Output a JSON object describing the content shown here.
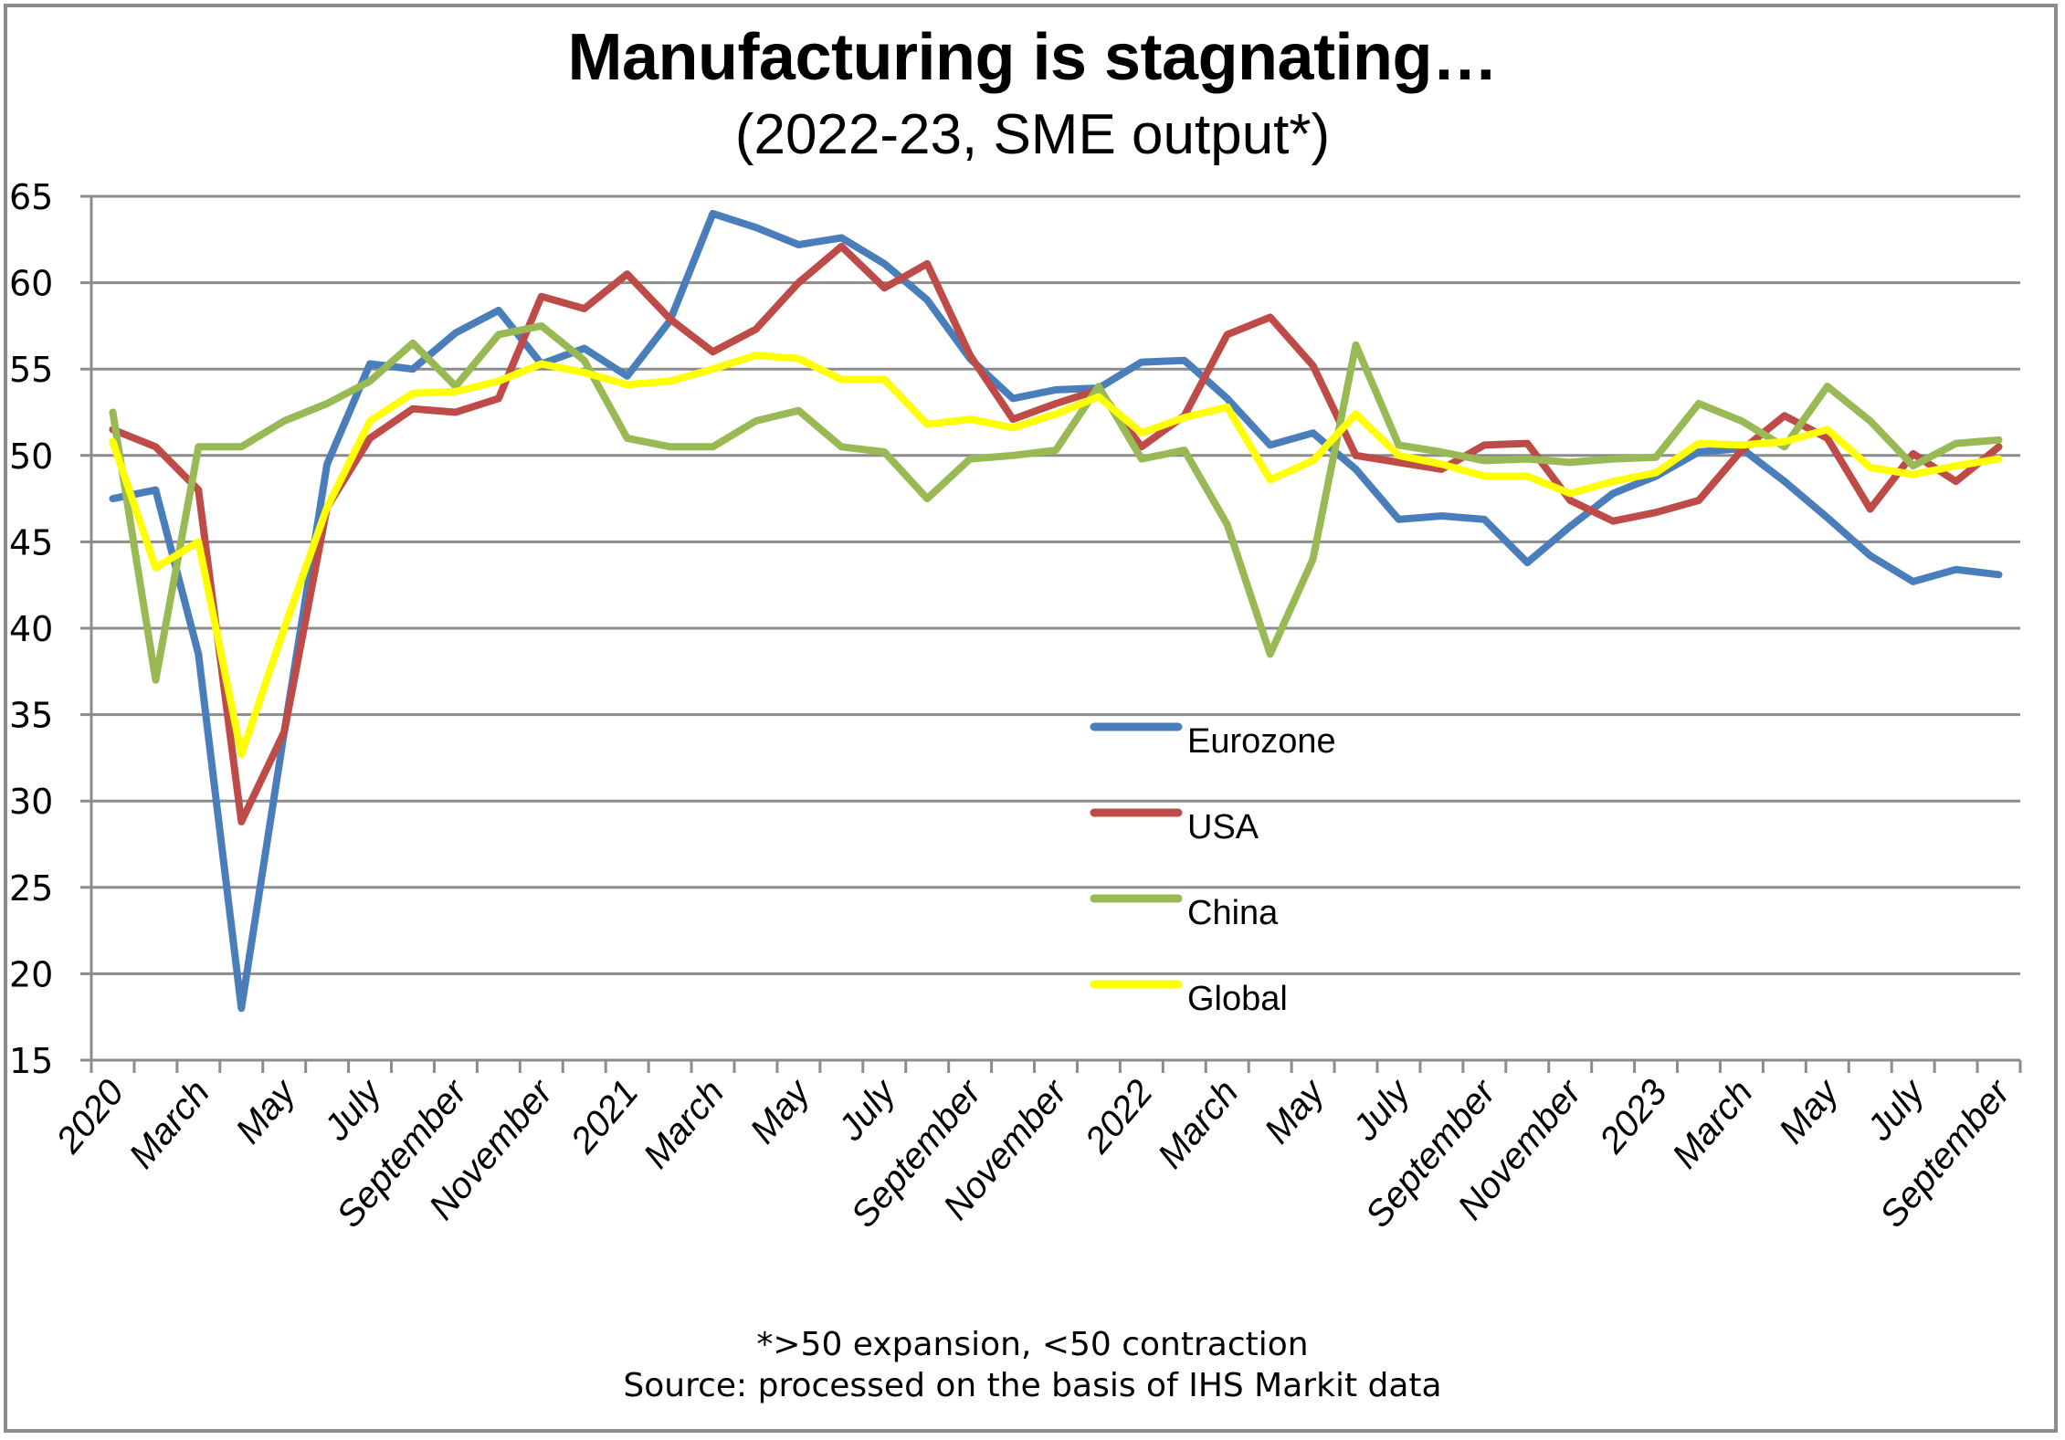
{
  "chart_data": {
    "type": "line",
    "title": "Manufacturing is stagnating…",
    "subtitle": "(2022-23, SME output*)",
    "xlabel": "",
    "ylabel": "",
    "ylim": [
      15,
      65
    ],
    "yticks": [
      15,
      20,
      25,
      30,
      35,
      40,
      45,
      50,
      55,
      60,
      65
    ],
    "grid": true,
    "legend_position": "center-right",
    "x": [
      "Jan 2020",
      "Feb 2020",
      "Mar 2020",
      "Apr 2020",
      "May 2020",
      "Jun 2020",
      "Jul 2020",
      "Aug 2020",
      "Sep 2020",
      "Oct 2020",
      "Nov 2020",
      "Dec 2020",
      "Jan 2021",
      "Feb 2021",
      "Mar 2021",
      "Apr 2021",
      "May 2021",
      "Jun 2021",
      "Jul 2021",
      "Aug 2021",
      "Sep 2021",
      "Oct 2021",
      "Nov 2021",
      "Dec 2021",
      "Jan 2022",
      "Feb 2022",
      "Mar 2022",
      "Apr 2022",
      "May 2022",
      "Jun 2022",
      "Jul 2022",
      "Aug 2022",
      "Sep 2022",
      "Oct 2022",
      "Nov 2022",
      "Dec 2022",
      "Jan 2023",
      "Feb 2023",
      "Mar 2023",
      "Apr 2023",
      "May 2023",
      "Jun 2023",
      "Jul 2023",
      "Aug 2023",
      "Sep 2023"
    ],
    "xtick_labels": [
      "2020",
      "March",
      "May",
      "July",
      "September",
      "November",
      "2021",
      "March",
      "May",
      "July",
      "September",
      "November",
      "2022",
      "March",
      "May",
      "July",
      "September",
      "November",
      "2023",
      "March",
      "May",
      "July",
      "September"
    ],
    "xtick_label_every": 2,
    "series": [
      {
        "name": "Eurozone",
        "color": "#4a7ebb",
        "values": [
          47.5,
          48.0,
          38.5,
          18.0,
          34.0,
          49.5,
          55.3,
          55.0,
          57.1,
          58.4,
          55.3,
          56.2,
          54.6,
          57.8,
          64.0,
          63.2,
          62.2,
          62.6,
          61.1,
          59.0,
          55.6,
          53.3,
          53.8,
          53.9,
          55.4,
          55.5,
          53.3,
          50.6,
          51.3,
          49.2,
          46.3,
          46.5,
          46.3,
          43.8,
          45.9,
          47.8,
          48.8,
          50.2,
          50.4,
          48.5,
          46.4,
          44.2,
          42.7,
          43.4,
          43.1
        ]
      },
      {
        "name": "USA",
        "color": "#be4b48",
        "values": [
          51.5,
          50.5,
          48.0,
          28.8,
          34.0,
          47.0,
          51.0,
          52.7,
          52.5,
          53.3,
          59.2,
          58.5,
          60.5,
          57.9,
          56.0,
          57.3,
          60.0,
          62.1,
          59.7,
          61.1,
          55.8,
          52.1,
          53.0,
          53.8,
          50.5,
          52.3,
          57.0,
          58.0,
          55.2,
          50.0,
          49.6,
          49.2,
          50.6,
          50.7,
          47.4,
          46.2,
          46.7,
          47.4,
          50.3,
          52.3,
          51.0,
          46.9,
          50.1,
          48.5,
          50.5
        ]
      },
      {
        "name": "China",
        "color": "#98b954",
        "values": [
          52.5,
          37.0,
          50.5,
          50.5,
          52.0,
          53.0,
          54.3,
          56.5,
          54.0,
          57.0,
          57.5,
          55.5,
          51.0,
          50.5,
          50.5,
          52.0,
          52.6,
          50.5,
          50.2,
          47.5,
          49.8,
          50.0,
          50.3,
          54.0,
          49.8,
          50.3,
          46.0,
          38.5,
          44.0,
          56.4,
          50.6,
          50.2,
          49.7,
          49.8,
          49.6,
          49.8,
          49.9,
          53.0,
          52.0,
          50.5,
          54.0,
          52.0,
          49.4,
          50.7,
          50.9
        ]
      },
      {
        "name": "Global",
        "color": "#ffff00",
        "values": [
          50.8,
          43.5,
          45.0,
          32.7,
          40.0,
          47.0,
          52.0,
          53.6,
          53.7,
          54.3,
          55.3,
          54.8,
          54.1,
          54.3,
          55.0,
          55.8,
          55.6,
          54.4,
          54.4,
          51.8,
          52.1,
          51.6,
          52.4,
          53.4,
          51.3,
          52.2,
          52.8,
          48.6,
          49.7,
          52.4,
          50.0,
          49.5,
          48.8,
          48.8,
          47.8,
          48.5,
          49.0,
          50.7,
          50.6,
          50.8,
          51.5,
          49.3,
          48.9,
          49.4,
          49.8
        ]
      }
    ],
    "annotations": [
      "*>50 expansion, <50 contraction",
      "Source: processed on the basis of IHS Markit data"
    ]
  },
  "colors": {
    "grid": "#8c8c8c",
    "frame": "#8c8c8c"
  }
}
